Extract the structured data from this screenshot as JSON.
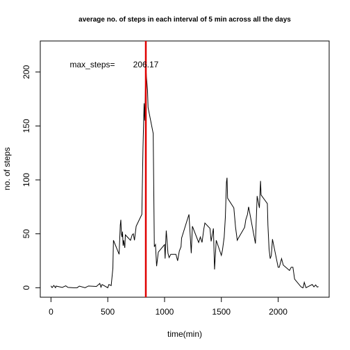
{
  "chart_data": {
    "type": "line",
    "title": "average no. of steps in each interval of 5 min across all the days",
    "x_label": "time(min)",
    "y_label": "no. of steps",
    "xlim": [
      -94.2,
      2449.2
    ],
    "ylim": [
      -8.8,
      228.8
    ],
    "xticks": [
      0,
      500,
      1000,
      1500,
      2000
    ],
    "yticks": [
      0,
      50,
      100,
      150,
      200
    ],
    "grid": false,
    "vline": {
      "x": 835,
      "color": "#e00000"
    },
    "annotations": [
      "max_steps=",
      "206.17"
    ],
    "series": [
      {
        "color": "#000000",
        "x": [
          0,
          10,
          25,
          40,
          45,
          100,
          130,
          150,
          200,
          230,
          250,
          300,
          330,
          400,
          430,
          440,
          450,
          500,
          510,
          530,
          545,
          550,
          600,
          610,
          615,
          620,
          625,
          630,
          635,
          640,
          650,
          655,
          700,
          715,
          725,
          735,
          750,
          800,
          810,
          820,
          825,
          830,
          835,
          840,
          850,
          855,
          900,
          910,
          920,
          930,
          945,
          1000,
          1005,
          1010,
          1015,
          1030,
          1040,
          1055,
          1100,
          1115,
          1130,
          1145,
          1150,
          1200,
          1215,
          1235,
          1245,
          1300,
          1315,
          1330,
          1340,
          1345,
          1355,
          1400,
          1410,
          1430,
          1440,
          1455,
          1500,
          1510,
          1525,
          1535,
          1545,
          1550,
          1555,
          1610,
          1625,
          1640,
          1645,
          1650,
          1705,
          1715,
          1730,
          1740,
          1800,
          1815,
          1835,
          1845,
          1850,
          1905,
          1910,
          1920,
          1930,
          1940,
          1950,
          2000,
          2010,
          2030,
          2045,
          2100,
          2115,
          2130,
          2145,
          2200,
          2215,
          2220,
          2230,
          2245,
          2300,
          2315,
          2330,
          2345,
          2355
        ],
        "values": [
          1.7,
          0.1,
          2.1,
          0,
          1.5,
          0.3,
          1.8,
          0.3,
          0,
          0,
          1.5,
          0,
          1.6,
          1.2,
          4,
          0.5,
          3,
          0,
          3,
          2,
          18,
          44,
          31,
          58,
          63,
          50,
          47,
          52,
          39,
          44,
          37,
          49,
          44,
          49,
          50,
          44,
          57,
          68,
          129,
          171,
          155,
          177,
          206.17,
          196,
          183,
          167,
          143,
          38,
          40,
          20,
          33,
          40,
          27,
          42,
          53,
          32,
          28,
          31,
          31,
          25,
          34,
          38,
          46,
          63,
          68,
          32,
          57,
          42,
          47,
          42,
          50,
          54,
          60,
          55,
          43,
          55,
          17,
          44,
          30,
          35,
          47,
          65,
          98,
          102,
          83,
          74,
          56,
          44,
          45,
          46,
          56,
          63,
          68,
          75,
          41,
          85,
          74,
          99,
          86,
          78,
          58,
          36,
          27,
          30,
          45,
          19,
          19,
          27,
          21,
          16,
          19,
          19,
          8,
          1,
          0,
          0,
          5,
          0,
          3,
          0.8,
          2.6,
          0.6,
          1.1
        ]
      }
    ]
  }
}
